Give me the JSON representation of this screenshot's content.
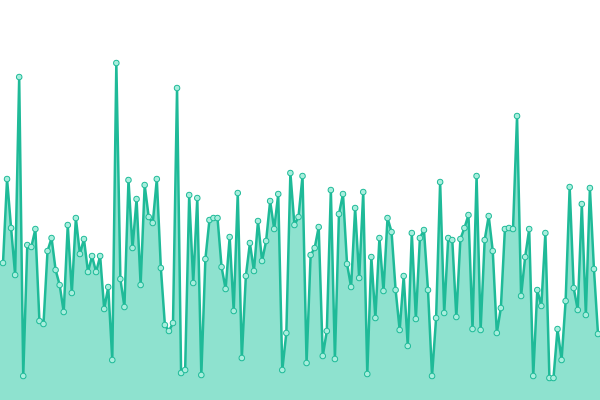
{
  "chart_data": {
    "type": "area",
    "color": "#1fba98",
    "fill": "#8ee2cf",
    "ylim": [
      0,
      400
    ],
    "values": [
      137,
      221,
      172,
      125,
      323,
      24,
      155,
      153,
      171,
      79,
      76,
      149,
      162,
      130,
      115,
      88,
      175,
      107,
      182,
      146,
      161,
      128,
      144,
      128,
      144,
      91,
      113,
      40,
      337,
      121,
      93,
      220,
      152,
      201,
      115,
      215,
      183,
      177,
      221,
      132,
      75,
      69,
      77,
      312,
      27,
      30,
      205,
      117,
      202,
      25,
      141,
      180,
      182,
      182,
      133,
      111,
      163,
      89,
      207,
      42,
      124,
      157,
      129,
      179,
      139,
      159,
      199,
      171,
      206,
      30,
      67,
      227,
      175,
      183,
      224,
      37,
      145,
      152,
      173,
      44,
      69,
      210,
      41,
      186,
      206,
      136,
      113,
      192,
      122,
      208,
      26,
      143,
      82,
      162,
      109,
      182,
      168,
      110,
      70,
      124,
      54,
      167,
      81,
      162,
      170,
      110,
      24,
      82,
      218,
      87,
      162,
      160,
      83,
      161,
      172,
      185,
      71,
      224,
      70,
      160,
      184,
      149,
      67,
      92,
      171,
      172,
      171,
      284,
      104,
      143,
      171,
      24,
      110,
      94,
      167,
      22,
      22,
      71,
      40,
      99,
      213,
      112,
      90,
      196,
      85,
      212,
      131,
      66
    ]
  }
}
